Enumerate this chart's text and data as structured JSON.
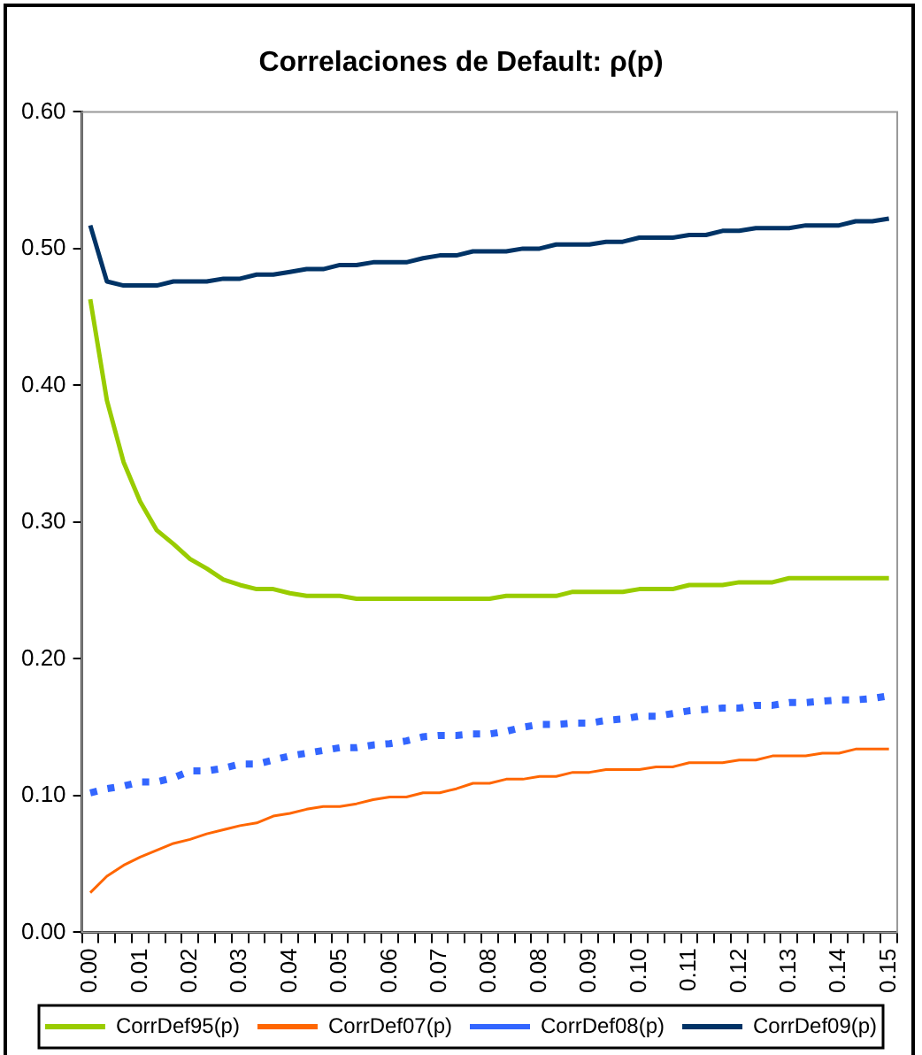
{
  "chart_data": {
    "type": "line",
    "title": "Correlaciones de Default: ρ(p)",
    "categories": [
      "0.00",
      null,
      null,
      "0.01",
      null,
      null,
      "0.02",
      null,
      null,
      "0.03",
      null,
      null,
      "0.04",
      null,
      null,
      "0.05",
      null,
      null,
      "0.06",
      null,
      null,
      "0.07",
      null,
      null,
      "0.08",
      null,
      null,
      "0.08",
      null,
      null,
      "0.09",
      null,
      null,
      "0.10",
      null,
      null,
      "0.11",
      null,
      null,
      "0.12",
      null,
      null,
      "0.13",
      null,
      null,
      "0.14",
      null,
      null,
      "0.15"
    ],
    "series": [
      {
        "name": "CorrDef95(p)",
        "color": "#99cc00",
        "line_style": "solid",
        "values": [
          0.463,
          0.389,
          0.344,
          0.315,
          0.294,
          0.284,
          0.273,
          0.266,
          0.258,
          0.254,
          0.251,
          0.251,
          0.248,
          0.246,
          0.246,
          0.246,
          0.244,
          0.244,
          0.244,
          0.244,
          0.244,
          0.244,
          0.244,
          0.244,
          0.244,
          0.246,
          0.246,
          0.246,
          0.246,
          0.249,
          0.249,
          0.249,
          0.249,
          0.251,
          0.251,
          0.251,
          0.254,
          0.254,
          0.254,
          0.256,
          0.256,
          0.256,
          0.259,
          0.259,
          0.259,
          0.259,
          0.259,
          0.259,
          0.259
        ]
      },
      {
        "name": "CorrDef07(p)",
        "color": "#ff6600",
        "line_style": "solid",
        "values": [
          0.029,
          0.041,
          0.049,
          0.055,
          0.06,
          0.065,
          0.068,
          0.072,
          0.075,
          0.078,
          0.08,
          0.085,
          0.087,
          0.09,
          0.092,
          0.092,
          0.094,
          0.097,
          0.099,
          0.099,
          0.102,
          0.102,
          0.105,
          0.109,
          0.109,
          0.112,
          0.112,
          0.114,
          0.114,
          0.117,
          0.117,
          0.119,
          0.119,
          0.119,
          0.121,
          0.121,
          0.124,
          0.124,
          0.124,
          0.126,
          0.126,
          0.129,
          0.129,
          0.129,
          0.131,
          0.131,
          0.134,
          0.134,
          0.134
        ]
      },
      {
        "name": "CorrDef08(p)",
        "color": "#3366ff",
        "line_style": "dotted",
        "values": [
          0.102,
          0.105,
          0.107,
          0.11,
          0.11,
          0.113,
          0.118,
          0.118,
          0.12,
          0.123,
          0.123,
          0.126,
          0.129,
          0.131,
          0.133,
          0.135,
          0.135,
          0.137,
          0.138,
          0.14,
          0.143,
          0.144,
          0.144,
          0.145,
          0.145,
          0.147,
          0.15,
          0.152,
          0.152,
          0.153,
          0.153,
          0.155,
          0.156,
          0.158,
          0.158,
          0.16,
          0.162,
          0.163,
          0.164,
          0.164,
          0.166,
          0.166,
          0.168,
          0.168,
          0.169,
          0.17,
          0.17,
          0.171,
          0.173
        ]
      },
      {
        "name": "CorrDef09(p)",
        "color": "#003366",
        "line_style": "solid",
        "values": [
          0.517,
          0.476,
          0.473,
          0.473,
          0.473,
          0.476,
          0.476,
          0.476,
          0.478,
          0.478,
          0.481,
          0.481,
          0.483,
          0.485,
          0.485,
          0.488,
          0.488,
          0.49,
          0.49,
          0.49,
          0.493,
          0.495,
          0.495,
          0.498,
          0.498,
          0.498,
          0.5,
          0.5,
          0.503,
          0.503,
          0.503,
          0.505,
          0.505,
          0.508,
          0.508,
          0.508,
          0.51,
          0.51,
          0.513,
          0.513,
          0.515,
          0.515,
          0.515,
          0.517,
          0.517,
          0.517,
          0.52,
          0.52,
          0.522
        ]
      }
    ],
    "ylim": [
      0,
      0.6
    ],
    "yticks": [
      {
        "value": 0,
        "label": "0.00"
      },
      {
        "value": 0.1,
        "label": "0.10"
      },
      {
        "value": 0.2,
        "label": "0.20"
      },
      {
        "value": 0.3,
        "label": "0.30"
      },
      {
        "value": 0.4,
        "label": "0.40"
      },
      {
        "value": 0.5,
        "label": "0.50"
      },
      {
        "value": 0.6,
        "label": "0.60"
      }
    ],
    "grid": false,
    "legend": "bottom",
    "marker": "none"
  }
}
